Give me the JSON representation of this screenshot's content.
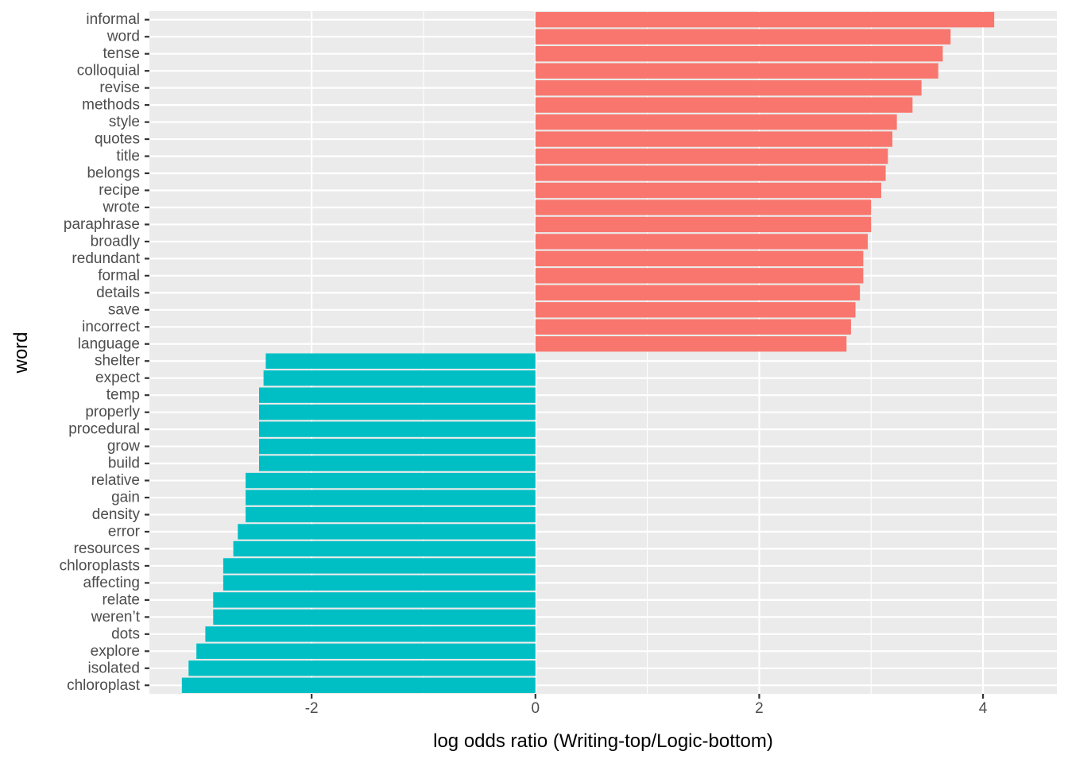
{
  "chart_data": {
    "type": "bar",
    "orientation": "horizontal",
    "title": "",
    "xlabel": "log odds ratio (Writing-top/Logic-bottom)",
    "ylabel": "word",
    "xlim": [
      -3.45,
      4.66
    ],
    "xticks": [
      -2,
      0,
      2,
      4
    ],
    "xtick_labels": [
      "-2",
      "0",
      "2",
      "4"
    ],
    "grid": true,
    "legend": "none",
    "colors": {
      "writing": "#F8766D",
      "logic": "#00BFC4",
      "panel_background": "#EBEBEB",
      "grid": "#FFFFFF"
    },
    "categories": [
      "informal",
      "word",
      "tense",
      "colloquial",
      "revise",
      "methods",
      "style",
      "quotes",
      "title",
      "belongs",
      "recipe",
      "wrote",
      "paraphrase",
      "broadly",
      "redundant",
      "formal",
      "details",
      "save",
      "incorrect",
      "language",
      "shelter",
      "expect",
      "temp",
      "properly",
      "procedural",
      "grow",
      "build",
      "relative",
      "gain",
      "density",
      "error",
      "resources",
      "chloroplasts",
      "affecting",
      "relate",
      "weren’t",
      "dots",
      "explore",
      "isolated",
      "chloroplast"
    ],
    "values": [
      4.1,
      3.71,
      3.64,
      3.6,
      3.45,
      3.37,
      3.23,
      3.19,
      3.15,
      3.13,
      3.09,
      3.0,
      3.0,
      2.97,
      2.93,
      2.93,
      2.9,
      2.86,
      2.82,
      2.78,
      -2.41,
      -2.43,
      -2.47,
      -2.47,
      -2.47,
      -2.47,
      -2.47,
      -2.59,
      -2.59,
      -2.59,
      -2.66,
      -2.7,
      -2.79,
      -2.79,
      -2.88,
      -2.88,
      -2.95,
      -3.03,
      -3.1,
      -3.16
    ],
    "groups": [
      "writing",
      "writing",
      "writing",
      "writing",
      "writing",
      "writing",
      "writing",
      "writing",
      "writing",
      "writing",
      "writing",
      "writing",
      "writing",
      "writing",
      "writing",
      "writing",
      "writing",
      "writing",
      "writing",
      "writing",
      "logic",
      "logic",
      "logic",
      "logic",
      "logic",
      "logic",
      "logic",
      "logic",
      "logic",
      "logic",
      "logic",
      "logic",
      "logic",
      "logic",
      "logic",
      "logic",
      "logic",
      "logic",
      "logic",
      "logic"
    ]
  }
}
